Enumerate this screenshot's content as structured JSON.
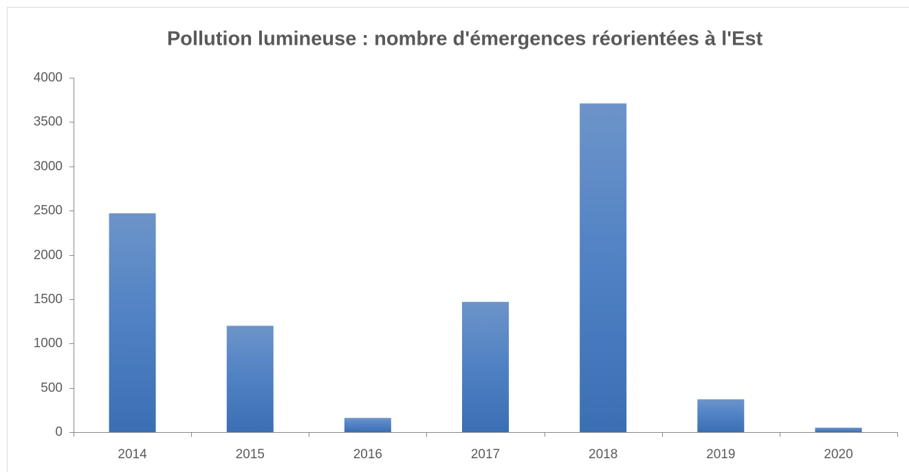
{
  "chart_data": {
    "type": "bar",
    "title": "Pollution lumineuse : nombre d'émergences réorientées à l'Est",
    "categories": [
      "2014",
      "2015",
      "2016",
      "2017",
      "2018",
      "2019",
      "2020"
    ],
    "values": [
      2470,
      1200,
      160,
      1470,
      3710,
      370,
      50
    ],
    "color": "#4f81bd",
    "ylim": [
      0,
      4000
    ],
    "yticks": [
      0,
      500,
      1000,
      1500,
      2000,
      2500,
      3000,
      3500,
      4000
    ],
    "grid": false
  }
}
